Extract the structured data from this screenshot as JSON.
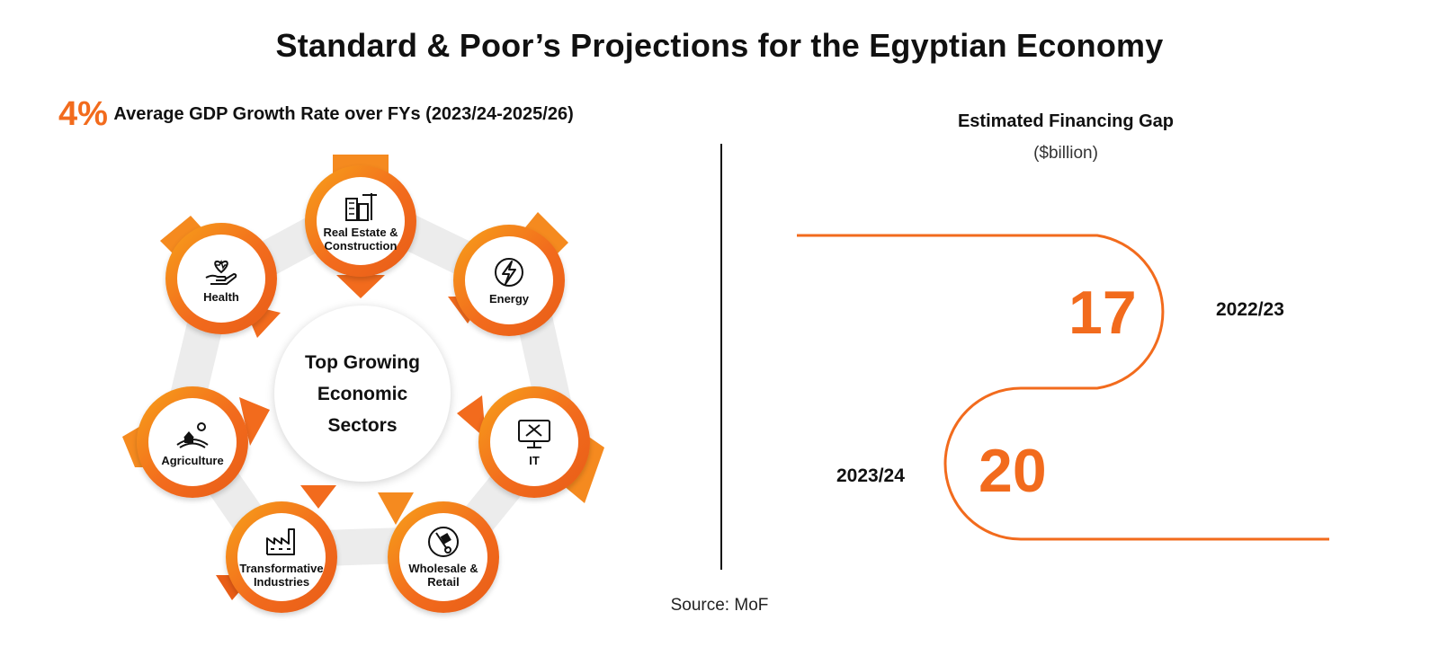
{
  "title": "Standard & Poor’s Projections for the Egyptian Economy",
  "gdp": {
    "value": "4%",
    "label": "Average GDP Growth Rate over FYs (2023/24-2025/26)"
  },
  "sectors": {
    "center_label": "Top Growing Economic Sectors",
    "items": [
      {
        "label": "Real Estate & Construction",
        "icon": "buildings-crane-icon"
      },
      {
        "label": "Energy",
        "icon": "lightning-icon"
      },
      {
        "label": "IT",
        "icon": "computer-tools-icon"
      },
      {
        "label": "Wholesale & Retail",
        "icon": "hand-truck-icon"
      },
      {
        "label": "Transformative Industries",
        "icon": "factory-icon"
      },
      {
        "label": "Agriculture",
        "icon": "farm-icon"
      },
      {
        "label": "Health",
        "icon": "hand-heart-icon"
      }
    ]
  },
  "financing_gap": {
    "title": "Estimated Financing Gap",
    "unit": "($billion)",
    "entries": [
      {
        "year": "2022/23",
        "value": "17"
      },
      {
        "year": "2023/24",
        "value": "20"
      }
    ]
  },
  "source": "Source: MoF",
  "colors": {
    "accent": "#f26b1d",
    "accent_light": "#f7a11a",
    "ring_track": "#ececec"
  }
}
